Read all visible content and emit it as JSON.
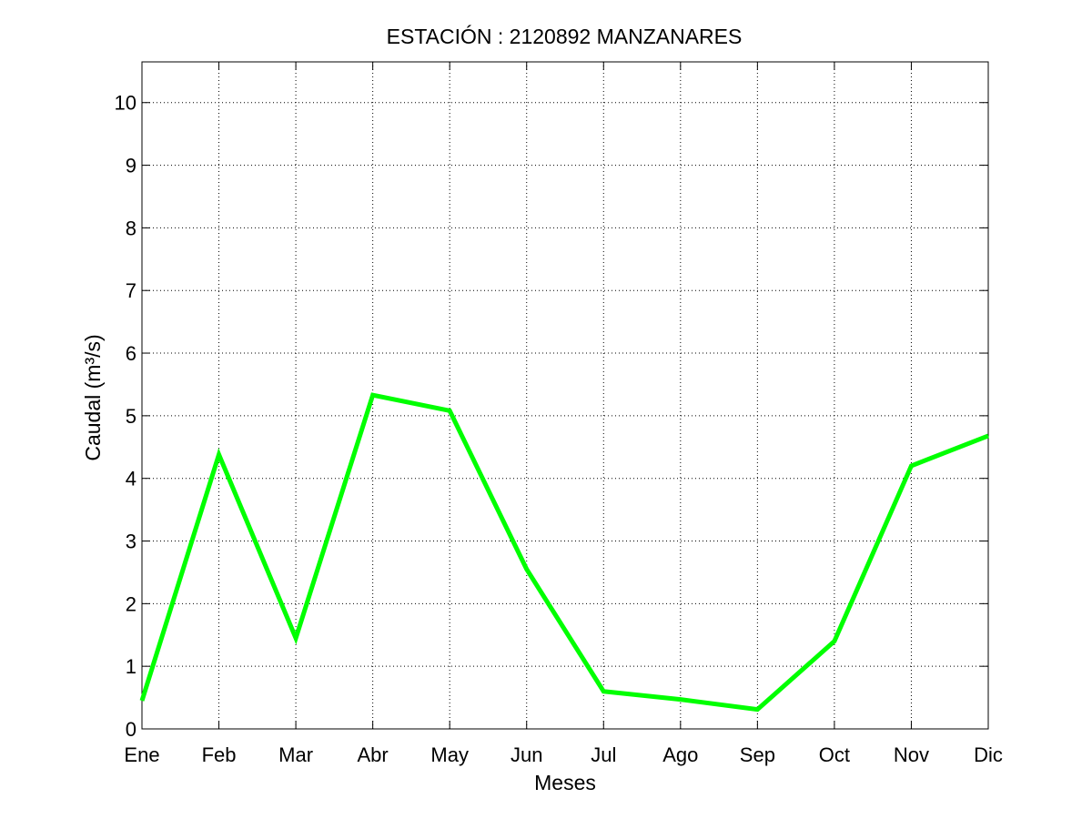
{
  "chart_data": {
    "type": "line",
    "title": "ESTACIÓN :  2120892  MANZANARES",
    "xlabel": "Meses",
    "ylabel": "Caudal (m³/s)",
    "categories": [
      "Ene",
      "Feb",
      "Mar",
      "Abr",
      "May",
      "Jun",
      "Jul",
      "Ago",
      "Sep",
      "Oct",
      "Nov",
      "Dic"
    ],
    "y_ticks": [
      "0",
      "1",
      "2",
      "3",
      "4",
      "5",
      "6",
      "7",
      "8",
      "9",
      "10"
    ],
    "ylim": [
      0,
      10.65
    ],
    "grid": true,
    "series": [
      {
        "color": "#00ff00",
        "values": [
          0.45,
          4.38,
          1.45,
          5.33,
          5.08,
          2.55,
          0.6,
          0.47,
          0.31,
          1.4,
          4.2,
          4.68
        ]
      }
    ]
  }
}
